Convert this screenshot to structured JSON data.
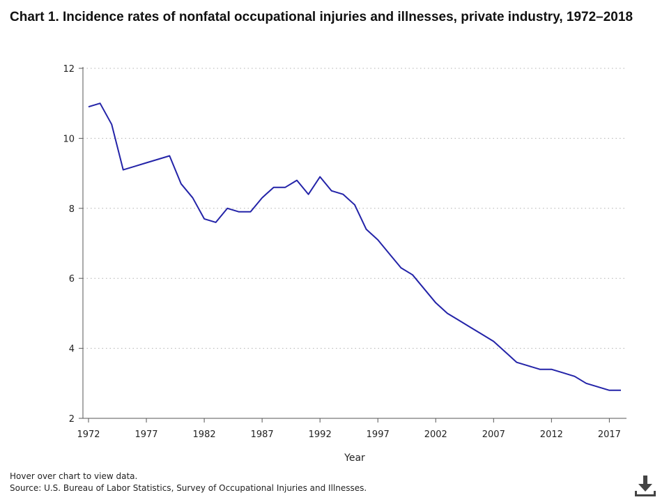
{
  "title": "Chart 1. Incidence rates of nonfatal occupational injuries and illnesses, private industry, 1972–2018",
  "hover_note": "Hover over chart to view data.",
  "source_note": "Source: U.S. Bureau of Labor Statistics, Survey of Occupational Injuries and Illnesses.",
  "download_icon": "download-icon",
  "colors": {
    "line": "#2323a8",
    "grid": "#b0b0b0",
    "axis": "#555555"
  },
  "chart_data": {
    "type": "line",
    "title": "Chart 1. Incidence rates of nonfatal occupational injuries and illnesses, private industry, 1972–2018",
    "xlabel": "Year",
    "ylabel": "",
    "xlim": [
      1972,
      2018
    ],
    "ylim": [
      2,
      12
    ],
    "x_ticks": [
      1972,
      1977,
      1982,
      1987,
      1992,
      1997,
      2002,
      2007,
      2012,
      2017
    ],
    "y_ticks": [
      2,
      4,
      6,
      8,
      10,
      12
    ],
    "grid": "horizontal dotted",
    "legend": "none",
    "series": [
      {
        "x": [
          1972,
          1973,
          1974,
          1975,
          1976,
          1977,
          1978,
          1979,
          1980,
          1981,
          1982,
          1983,
          1984,
          1985,
          1986,
          1987,
          1988,
          1989,
          1990,
          1991,
          1992,
          1993,
          1994,
          1995,
          1996,
          1997,
          1998,
          1999,
          2000,
          2001,
          2002,
          2003,
          2004,
          2005,
          2006,
          2007,
          2008,
          2009,
          2010,
          2011,
          2012,
          2013,
          2014,
          2015,
          2016,
          2017,
          2018
        ],
        "values": [
          10.9,
          11.0,
          10.4,
          9.1,
          9.2,
          9.3,
          9.4,
          9.5,
          8.7,
          8.3,
          7.7,
          7.6,
          8.0,
          7.9,
          7.9,
          8.3,
          8.6,
          8.6,
          8.8,
          8.4,
          8.9,
          8.5,
          8.4,
          8.1,
          7.4,
          7.1,
          6.7,
          6.3,
          6.1,
          5.7,
          5.3,
          5.0,
          4.8,
          4.6,
          4.4,
          4.2,
          3.9,
          3.6,
          3.5,
          3.4,
          3.4,
          3.3,
          3.2,
          3.0,
          2.9,
          2.8,
          2.8
        ]
      }
    ]
  }
}
